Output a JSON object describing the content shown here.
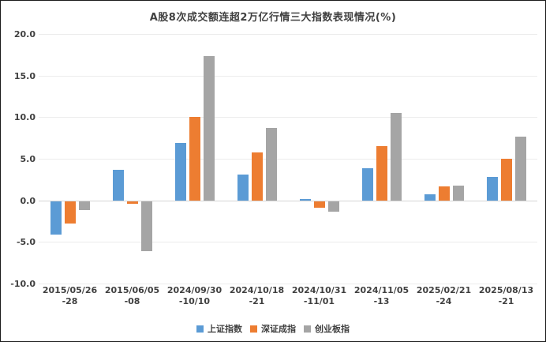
{
  "chart_data": {
    "type": "bar",
    "title": "A股8次成交额连超2万亿行情三大指数表现情况(%)",
    "categories": [
      {
        "line1": "2015/05/26",
        "line2": "-28"
      },
      {
        "line1": "2015/06/05",
        "line2": "-08"
      },
      {
        "line1": "2024/09/30",
        "line2": "-10/10"
      },
      {
        "line1": "2024/10/18",
        "line2": "-21"
      },
      {
        "line1": "2024/10/31",
        "line2": "-11/01"
      },
      {
        "line1": "2024/11/05",
        "line2": "-13"
      },
      {
        "line1": "2025/02/21",
        "line2": "-24"
      },
      {
        "line1": "2025/08/13",
        "line2": "-21"
      }
    ],
    "series": [
      {
        "name": "上证指数",
        "color": "#5B9BD5",
        "values": [
          -4.0,
          3.7,
          6.9,
          3.1,
          0.2,
          3.9,
          0.7,
          2.8
        ]
      },
      {
        "name": "深证成指",
        "color": "#ED7D31",
        "values": [
          -2.7,
          -0.3,
          10.0,
          5.8,
          -0.8,
          6.5,
          1.7,
          5.0
        ]
      },
      {
        "name": "创业板指",
        "color": "#A5A5A5",
        "values": [
          -1.1,
          -6.0,
          17.3,
          8.7,
          -1.3,
          10.5,
          1.8,
          7.7
        ]
      }
    ],
    "y_axis": {
      "min": -10,
      "max": 20,
      "step": 5,
      "tick_format_decimals": 1
    },
    "grid": true,
    "legend_position": "bottom"
  }
}
